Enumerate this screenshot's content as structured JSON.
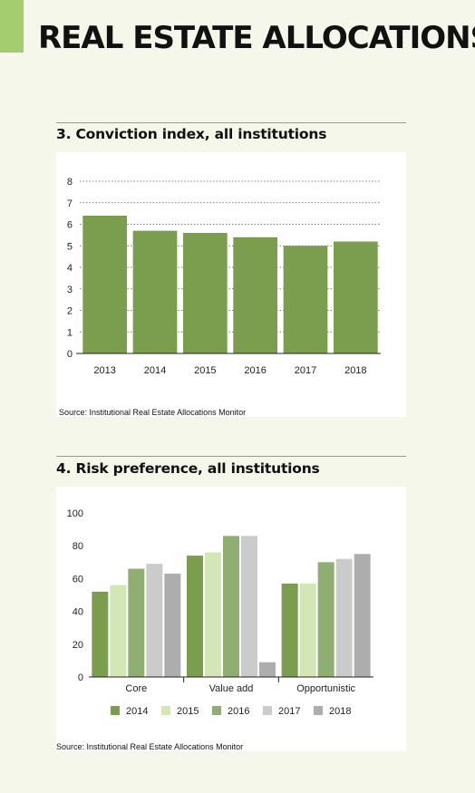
{
  "page": {
    "title": "REAL ESTATE ALLOCATIONS",
    "accent_color": "#a3cd6e"
  },
  "chart_data": [
    {
      "type": "bar",
      "title": "3. Conviction index, all institutions",
      "categories": [
        "2013",
        "2014",
        "2015",
        "2016",
        "2017",
        "2018"
      ],
      "values": [
        6.4,
        5.7,
        5.6,
        5.4,
        5.0,
        5.2
      ],
      "yticks": [
        "0",
        "1",
        "2",
        "3",
        "4",
        "5",
        "6",
        "7",
        "8"
      ],
      "ylim": [
        0,
        8
      ],
      "color": "#7a9e4e",
      "grid": "dotted",
      "source": "Source: Institutional Real Estate Allocations Monitor"
    },
    {
      "type": "bar",
      "title": "4. Risk preference, all institutions",
      "categories": [
        "Core",
        "Value add",
        "Opportunistic"
      ],
      "series": [
        {
          "name": "2014",
          "color": "#7a9e4e",
          "values": [
            52,
            74,
            57
          ]
        },
        {
          "name": "2015",
          "color": "#d3e7b5",
          "values": [
            56,
            76,
            57
          ]
        },
        {
          "name": "2016",
          "color": "#8fae72",
          "values": [
            66,
            86,
            70
          ]
        },
        {
          "name": "2017",
          "color": "#cbcbcb",
          "values": [
            69,
            86,
            72
          ]
        },
        {
          "name": "2018",
          "color": "#adadad",
          "values": [
            63,
            9,
            75
          ]
        }
      ],
      "yticks": [
        "0",
        "20",
        "40",
        "60",
        "80",
        "100"
      ],
      "ylim": [
        0,
        100
      ],
      "legend": "bottom",
      "source": "Source: Institutional Real Estate Allocations Monitor"
    }
  ]
}
